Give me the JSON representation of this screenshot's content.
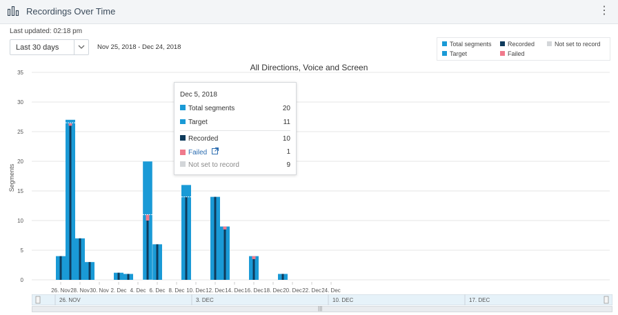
{
  "header": {
    "title": "Recordings Over Time",
    "menu_icon": "vertical-dots-icon",
    "chart_icon": "bar-chart-icon"
  },
  "toolbar": {
    "last_updated": "Last updated: 02:18 pm",
    "range_value": "Last 30 days",
    "date_range": "Nov 25, 2018 - Dec 24, 2018"
  },
  "legend": [
    {
      "label": "Total segments",
      "color": "#1a9ad6"
    },
    {
      "label": "Recorded",
      "color": "#0f3b5c"
    },
    {
      "label": "Not set to record",
      "color": "#d3d6d9"
    },
    {
      "label": "Target",
      "color": "#1a9ad6"
    },
    {
      "label": "Failed",
      "color": "#f07a8c"
    }
  ],
  "tooltip": {
    "date": "Dec 5, 2018",
    "rows": [
      {
        "label": "Total segments",
        "value": "20"
      },
      {
        "label": "Target",
        "value": "11"
      },
      {
        "label": "Recorded",
        "value": "10"
      },
      {
        "label": "Failed",
        "value": "1"
      },
      {
        "label": "Not set to record",
        "value": "9"
      }
    ]
  },
  "navigator": {
    "labels": [
      "26. NOV",
      "3. DEC",
      "10. DEC",
      "17. DEC"
    ]
  },
  "colors": {
    "total": "#1a9ad6",
    "recorded": "#0f3b5c",
    "failed": "#f07a8c",
    "grid": "#e6e6e6"
  },
  "chart_data": {
    "type": "bar",
    "title": "All Directions, Voice and Screen",
    "xlabel": "",
    "ylabel": "Segments",
    "ylim": [
      0,
      35
    ],
    "yticks": [
      0,
      5,
      10,
      15,
      20,
      25,
      30,
      35
    ],
    "xticks": [
      "26. Nov",
      "28. Nov",
      "30. Nov",
      "2. Dec",
      "4. Dec",
      "6. Dec",
      "8. Dec",
      "10. Dec",
      "12. Dec",
      "14. Dec",
      "16. Dec",
      "18. Dec",
      "20. Dec",
      "22. Dec",
      "24. Dec"
    ],
    "x": [
      "Nov 26",
      "Nov 27",
      "Nov 28",
      "Nov 29",
      "Dec 2",
      "Dec 3",
      "Dec 5",
      "Dec 6",
      "Dec 9",
      "Dec 12",
      "Dec 13",
      "Dec 16",
      "Dec 19"
    ],
    "series": [
      {
        "name": "Total segments",
        "values": [
          4,
          27,
          7,
          3,
          1.2,
          1,
          20,
          6,
          16,
          14,
          9,
          4,
          1
        ]
      },
      {
        "name": "Recorded",
        "values": [
          4,
          26,
          7,
          3,
          1.2,
          1,
          10,
          6,
          14,
          14,
          8.5,
          3.5,
          1
        ]
      },
      {
        "name": "Target",
        "values": [
          null,
          26.5,
          null,
          null,
          null,
          null,
          11,
          null,
          14,
          null,
          null,
          null,
          null
        ]
      },
      {
        "name": "Failed",
        "values": [
          0,
          0.4,
          0,
          0,
          0,
          0,
          1,
          0,
          0,
          0,
          0.5,
          0.5,
          0
        ]
      }
    ]
  }
}
